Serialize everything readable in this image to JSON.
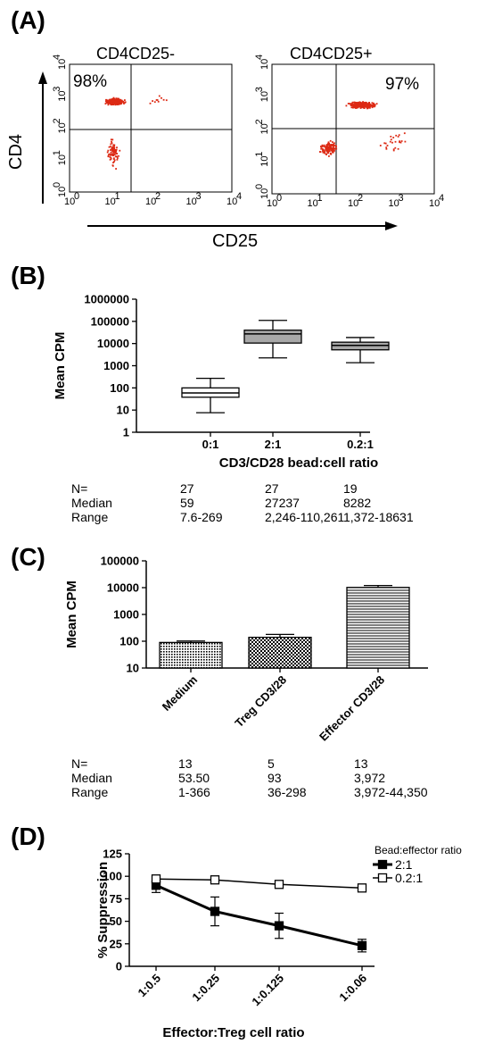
{
  "panels": {
    "A": {
      "label": "(A)",
      "y_axis_label": "CD4",
      "x_axis_label": "CD25",
      "plots": [
        {
          "title": "CD4CD25-",
          "percent": "98%"
        },
        {
          "title": "CD4CD25+",
          "percent": "97%"
        }
      ],
      "tick_labels": [
        "10",
        "10",
        "10",
        "10",
        "10"
      ],
      "tick_exponents": [
        "0",
        "1",
        "2",
        "3",
        "4"
      ]
    },
    "B": {
      "label": "(B)",
      "stats": {
        "labels": [
          "N=",
          "Median",
          "Range"
        ],
        "columns": [
          [
            "27",
            "59",
            "7.6-269"
          ],
          [
            "27",
            "27237",
            "2,246-110,261"
          ],
          [
            "19",
            "8282",
            "1,372-18631"
          ]
        ]
      }
    },
    "C": {
      "label": "(C)",
      "stats": {
        "labels": [
          "N=",
          "Median",
          "Range"
        ],
        "columns": [
          [
            "13",
            "53.50",
            "1-366"
          ],
          [
            "5",
            "93",
            "36-298"
          ],
          [
            "13",
            "3,972",
            "3,972-44,350"
          ]
        ]
      }
    },
    "D": {
      "label": "(D)"
    }
  },
  "chart_data": [
    {
      "panel": "A",
      "type": "scatter",
      "subplots": [
        {
          "title": "CD4CD25-",
          "gate_percent_upper_left": 98,
          "xscale": "log",
          "yscale": "log",
          "xlim": [
            1,
            10000
          ],
          "ylim": [
            1,
            10000
          ]
        },
        {
          "title": "CD4CD25+",
          "gate_percent_upper_right": 97,
          "xscale": "log",
          "yscale": "log",
          "xlim": [
            1,
            10000
          ],
          "ylim": [
            1,
            10000
          ]
        }
      ],
      "point_color": "#dd2a14"
    },
    {
      "panel": "B",
      "type": "box",
      "categories": [
        "0:1",
        "2:1",
        "0.2:1"
      ],
      "boxes": [
        {
          "min": 7.6,
          "q1": 38,
          "median": 59,
          "q3": 100,
          "max": 269,
          "color": "#ffffff"
        },
        {
          "min": 2246,
          "q1": 10500,
          "median": 27237,
          "q3": 40000,
          "max": 110261,
          "color": "#a8a8a8"
        },
        {
          "min": 1372,
          "q1": 5200,
          "median": 8282,
          "q3": 11500,
          "max": 18631,
          "color": "#a8a8a8"
        }
      ],
      "xlabel": "CD3/CD28 bead:cell ratio",
      "ylabel": "Mean CPM",
      "yscale": "log",
      "ylim": [
        1,
        1000000
      ],
      "yticks": [
        "1",
        "10",
        "100",
        "1000",
        "10000",
        "100000",
        "1000000"
      ]
    },
    {
      "panel": "C",
      "type": "bar",
      "categories": [
        "Medium",
        "Treg CD3/28",
        "Effector CD3/28"
      ],
      "values": [
        90,
        140,
        10200
      ],
      "errors": [
        12,
        40,
        1800
      ],
      "ylabel": "Mean CPM",
      "yscale": "log",
      "ylim": [
        10,
        100000
      ],
      "yticks": [
        "10",
        "100",
        "1000",
        "10000",
        "100000"
      ]
    },
    {
      "panel": "D",
      "type": "line",
      "x": [
        "1:0.5",
        "1:0.25",
        "1:0.125",
        "1:0.06"
      ],
      "series": [
        {
          "name": "2:1",
          "values": [
            90,
            61,
            45,
            23
          ],
          "errors": [
            8,
            16,
            14,
            7
          ],
          "marker": "filled-square"
        },
        {
          "name": "0.2:1",
          "values": [
            97,
            96,
            91,
            87
          ],
          "errors": [
            2,
            2,
            2,
            2
          ],
          "marker": "open-square"
        }
      ],
      "legend_title": "Bead:effector ratio",
      "xlabel": "Effector:Treg cell ratio",
      "ylabel": "% Suppression",
      "ylim": [
        0,
        125
      ],
      "yticks": [
        "0",
        "25",
        "50",
        "75",
        "100",
        "125"
      ]
    }
  ]
}
